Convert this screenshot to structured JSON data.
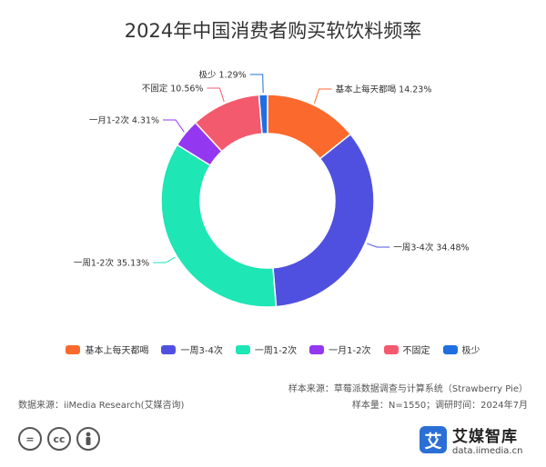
{
  "chart_data": {
    "type": "pie",
    "donut": true,
    "title": "2024年中国消费者购买软饮料频率",
    "categories": [
      "基本上每天都喝",
      "一周3-4次",
      "一周1-2次",
      "一月1-2次",
      "不固定",
      "极少"
    ],
    "values": [
      14.23,
      34.48,
      35.13,
      4.31,
      10.56,
      1.29
    ],
    "data_labels": [
      "基本上每天都喝 14.23%",
      "一周3-4次 34.48%",
      "一周1-2次 35.13%",
      "一月1-2次 4.31%",
      "不固定 10.56%",
      "极少 1.29%"
    ],
    "colors": [
      "#fb6a2c",
      "#5050e0",
      "#1ee6b4",
      "#9437f0",
      "#f45a6e",
      "#1f6fe0"
    ],
    "legend_position": "bottom"
  },
  "footer": {
    "source_label": "数据来源：iiMedia Research(艾媒咨询)",
    "sample_source": "样本来源：草莓派数据调查与计算系统（Strawberry Pie）",
    "sample_size": "样本量：N=1550；调研时间：2024年7月"
  },
  "license_icons": [
    "=",
    "cc",
    "person-icon"
  ],
  "brand": {
    "name": "艾媒智库",
    "logo_char": "艾",
    "url": "data.iimedia.cn",
    "color": "#2b6fd6"
  }
}
